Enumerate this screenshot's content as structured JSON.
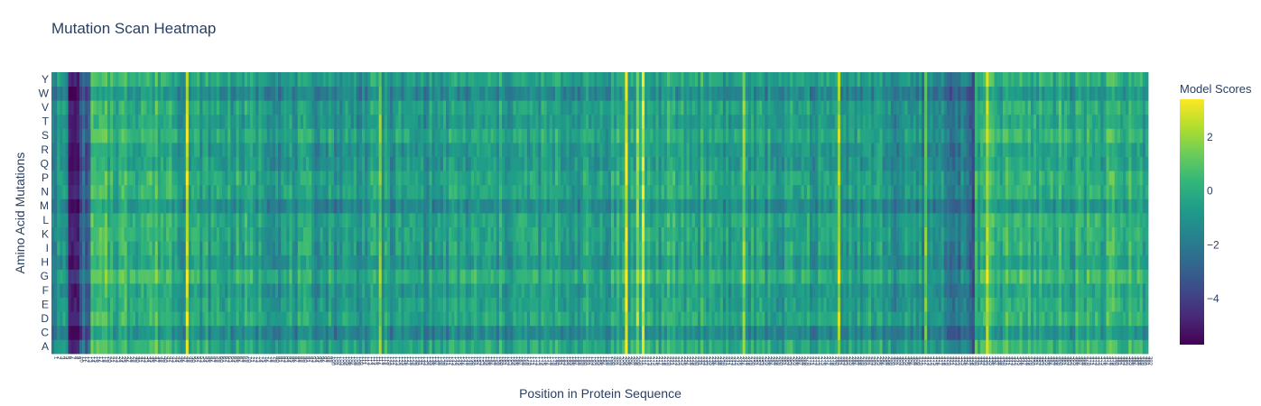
{
  "chart_data": {
    "type": "heatmap",
    "title": "Mutation Scan Heatmap",
    "xlabel": "Position in Protein Sequence",
    "ylabel": "Amino Acid Mutations",
    "y_categories": [
      "A",
      "C",
      "D",
      "E",
      "F",
      "G",
      "H",
      "I",
      "K",
      "L",
      "M",
      "N",
      "P",
      "Q",
      "R",
      "S",
      "T",
      "V",
      "W",
      "Y"
    ],
    "x_positions": 392,
    "colorbar": {
      "title": "Model Scores",
      "colorscale": "Viridis",
      "zmin": -5.7,
      "zmax": 3.4,
      "ticks": [
        {
          "value": 2,
          "label": "2"
        },
        {
          "value": 0,
          "label": "0"
        },
        {
          "value": -2,
          "label": "−2"
        },
        {
          "value": -4,
          "label": "−4"
        }
      ]
    },
    "row_offsets": {
      "A": 0.3,
      "C": -2.0,
      "D": 0.1,
      "E": -0.3,
      "F": -0.7,
      "G": 0.8,
      "H": -1.0,
      "I": -0.2,
      "K": -0.1,
      "L": 0.0,
      "M": -1.8,
      "N": -0.1,
      "P": 0.1,
      "Q": -0.9,
      "R": -0.9,
      "S": 0.2,
      "T": -0.7,
      "V": -0.3,
      "W": -2.0,
      "Y": -0.2
    },
    "column_profile": [
      {
        "x_start": 1,
        "x_end": 6,
        "value": -0.9
      },
      {
        "x_start": 7,
        "x_end": 10,
        "value": -4.8
      },
      {
        "x_start": 11,
        "x_end": 14,
        "value": -2.6
      },
      {
        "x_start": 15,
        "x_end": 45,
        "value": 0.4
      },
      {
        "x_start": 46,
        "x_end": 80,
        "value": -0.3
      },
      {
        "x_start": 81,
        "x_end": 140,
        "value": -0.6
      },
      {
        "x_start": 141,
        "x_end": 200,
        "value": -0.4
      },
      {
        "x_start": 201,
        "x_end": 240,
        "value": -0.1
      },
      {
        "x_start": 241,
        "x_end": 300,
        "value": -0.5
      },
      {
        "x_start": 301,
        "x_end": 320,
        "value": -1.1
      },
      {
        "x_start": 321,
        "x_end": 330,
        "value": -1.8
      },
      {
        "x_start": 331,
        "x_end": 392,
        "value": 0.2
      }
    ],
    "highlight_columns": [
      {
        "x": 49,
        "value": 2.8
      },
      {
        "x": 118,
        "value": 1.6
      },
      {
        "x": 206,
        "value": 3.2
      },
      {
        "x": 210,
        "value": 2.2
      },
      {
        "x": 212,
        "value": 3.0
      },
      {
        "x": 248,
        "value": 1.8
      },
      {
        "x": 282,
        "value": 2.2
      },
      {
        "x": 313,
        "value": 1.5
      },
      {
        "x": 330,
        "value": -3.6
      },
      {
        "x": 335,
        "value": 2.4
      }
    ]
  }
}
